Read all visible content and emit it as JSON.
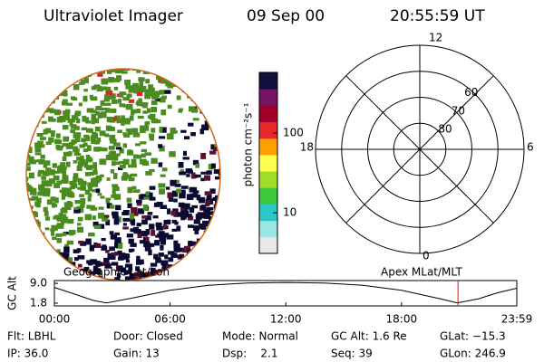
{
  "header": {
    "instrument": "Ultraviolet Imager",
    "date": "09 Sep 00",
    "time": "20:55:59 UT"
  },
  "colorbar": {
    "label": "photon cm⁻²s⁻¹",
    "scale": "log",
    "lim": [
      3.1,
      575
    ],
    "ticks": [
      10,
      100
    ],
    "colors": [
      "#e8e8e8",
      "#9ae6e6",
      "#28c8c8",
      "#3cc83c",
      "#a0dc28",
      "#ffff50",
      "#ffa000",
      "#e62828",
      "#a00028",
      "#781464",
      "#10103c"
    ]
  },
  "polar_grid": {
    "mlt_labels": [
      "12",
      "18",
      "6",
      "0"
    ],
    "lat_lim": [
      90,
      50
    ],
    "lat_rings": [
      80,
      70,
      60
    ]
  },
  "altitude_plot": {
    "title_left": "Geographic Lat/Lon",
    "title_right": "Apex MLat/MLT",
    "ylabel": "GC Alt",
    "ylim": [
      0.8,
      10
    ],
    "yticks": [
      {
        "value": 9,
        "label": "9.0"
      },
      1.8
    ],
    "xlim": [
      0,
      23.98
    ],
    "xticks": [
      {
        "value": 0,
        "label": "00:00"
      },
      {
        "value": 6,
        "label": "06:00"
      },
      {
        "value": 12,
        "label": "12:00"
      },
      {
        "value": 18,
        "label": "18:00"
      },
      {
        "value": 23.98,
        "label": "23:59"
      }
    ],
    "series": {
      "x": [
        0,
        1,
        2,
        2.7,
        4,
        6,
        8,
        10,
        12,
        14,
        16,
        18,
        20,
        20.9,
        22,
        23,
        23.98
      ],
      "y": [
        7.5,
        5.2,
        2.8,
        1.9,
        3.6,
        6.5,
        8.3,
        9.1,
        9.3,
        9.1,
        8.3,
        6.5,
        3.4,
        1.9,
        3.4,
        5.6,
        7.2
      ]
    },
    "marker": {
      "value": 20.93,
      "color": "#ff0000"
    }
  },
  "footer": {
    "rows": [
      [
        "Flt: LBHL",
        "Door: Closed",
        "Mode: Normal",
        "GC Alt: 1.6 Re",
        "GLat: −15.3"
      ],
      [
        "IP: 36.0",
        "Gain: 13",
        "Dsp:    2.1",
        "Seq: 39",
        "GLon: 246.9"
      ]
    ]
  }
}
